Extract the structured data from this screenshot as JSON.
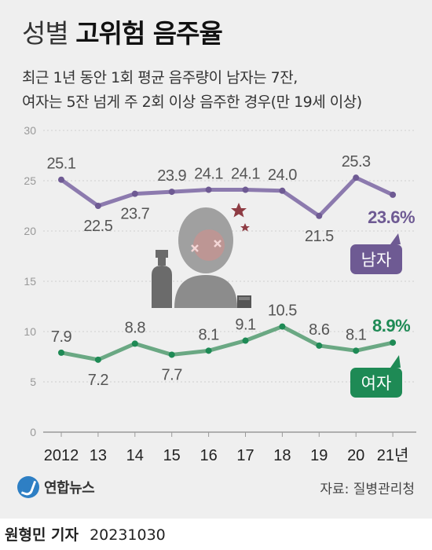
{
  "header": {
    "title_light": "성별",
    "title_bold": "고위험 음주율",
    "subtitle_line1": "최근 1년 동안 1회 평균 음주량이 남자는 7잔,",
    "subtitle_line2": "여자는 5잔 넘게 주 2회 이상 음주한 경우(만 19세 이상)"
  },
  "footer": {
    "logo_text": "연합뉴스",
    "source": "자료: 질병관리청",
    "reporter": "원형민 기자",
    "date": "20231030"
  },
  "colors": {
    "male": "#8c7aae",
    "male_dark": "#6e5a93",
    "female": "#6aa883",
    "female_dark": "#1e8a55"
  },
  "icons": [
    "drunk-person-icon",
    "bottle-icon",
    "glass-icon",
    "star-icon"
  ],
  "chart_data": {
    "type": "line",
    "categories": [
      "2012",
      "13",
      "14",
      "15",
      "16",
      "17",
      "18",
      "19",
      "20",
      "21년"
    ],
    "ylim": [
      0,
      30
    ],
    "yticks": [
      "0",
      "5",
      "10",
      "15",
      "20",
      "25",
      "30"
    ],
    "grid": true,
    "series": [
      {
        "name": "남자",
        "values": [
          25.1,
          22.5,
          23.7,
          23.9,
          24.1,
          24.1,
          24.0,
          21.5,
          25.3,
          23.6
        ],
        "labels": [
          "25.1",
          "22.5",
          "23.7",
          "23.9",
          "24.1",
          "24.1",
          "24.0",
          "21.5",
          "25.3",
          "23.6%"
        ]
      },
      {
        "name": "여자",
        "values": [
          7.9,
          7.2,
          8.8,
          7.7,
          8.1,
          9.1,
          10.5,
          8.6,
          8.1,
          8.9
        ],
        "labels": [
          "7.9",
          "7.2",
          "8.8",
          "7.7",
          "8.1",
          "9.1",
          "10.5",
          "8.6",
          "8.1",
          "8.9%"
        ]
      }
    ]
  }
}
